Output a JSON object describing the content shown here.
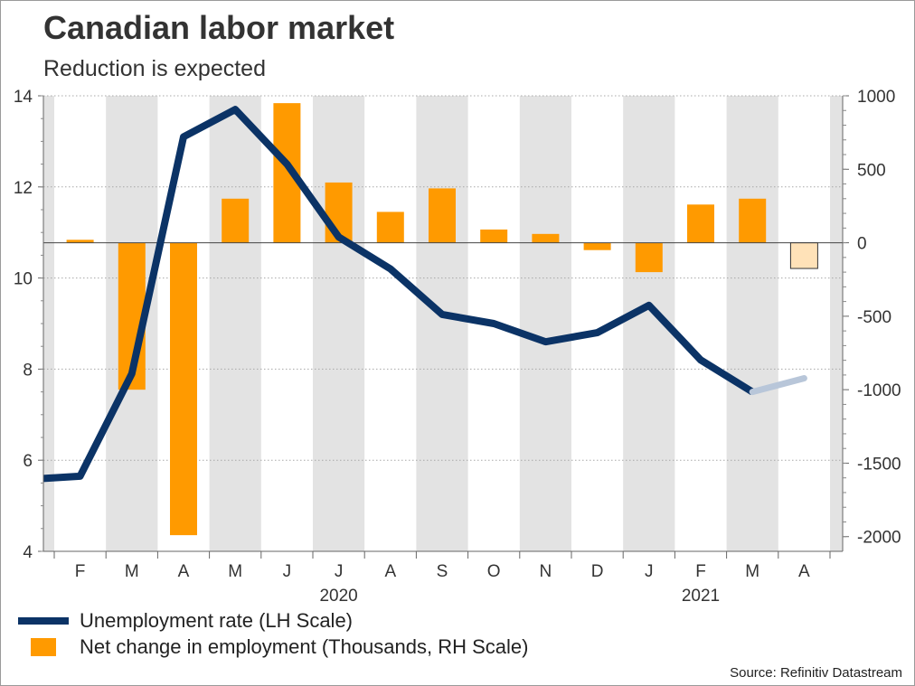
{
  "title": "Canadian labor market",
  "subtitle": "Reduction is expected",
  "source": "Source: Refinitiv Datastream",
  "colors": {
    "line": "#0b3366",
    "line_forecast": "#b8c6d9",
    "bar": "#ff9a00",
    "bar_forecast": "#ffe2b8",
    "band": "#e3e3e3"
  },
  "chart_data": {
    "type": "bar+line",
    "categories": [
      "F",
      "M",
      "A",
      "M",
      "J",
      "J",
      "A",
      "S",
      "O",
      "N",
      "D",
      "J",
      "F",
      "M",
      "A"
    ],
    "year_labels": [
      {
        "label": "2020",
        "category_index": 5
      },
      {
        "label": "2021",
        "category_index": 12
      }
    ],
    "left_axis": {
      "label": "Unemployment rate (LH Scale)",
      "min": 4,
      "max": 14,
      "ticks": [
        4,
        6,
        8,
        10,
        12,
        14
      ]
    },
    "right_axis": {
      "label": "Net change in employment (Thousands, RH Scale)",
      "min": -2100,
      "max": 1000,
      "ticks": [
        1000,
        500,
        0,
        -500,
        -1000,
        -1500,
        -2000
      ]
    },
    "series": [
      {
        "name": "Net change in employment (Thousands, RH Scale)",
        "type": "bar",
        "axis": "right",
        "values": [
          20,
          -1000,
          -1990,
          300,
          950,
          410,
          210,
          370,
          90,
          60,
          -50,
          -200,
          260,
          300,
          -175
        ],
        "forecast_index": 14
      },
      {
        "name": "Unemployment rate (LH Scale)",
        "type": "line",
        "axis": "left",
        "start_value": 5.6,
        "values": [
          5.65,
          7.9,
          13.1,
          13.7,
          12.5,
          10.9,
          10.2,
          9.2,
          9.0,
          8.6,
          8.8,
          9.4,
          8.2,
          7.5,
          7.8
        ],
        "forecast_index": 14
      }
    ],
    "grid": true
  },
  "legend": [
    {
      "label": "Unemployment rate (LH Scale)",
      "symbol": "line"
    },
    {
      "label": "Net change in employment (Thousands, RH Scale)",
      "symbol": "box"
    }
  ]
}
